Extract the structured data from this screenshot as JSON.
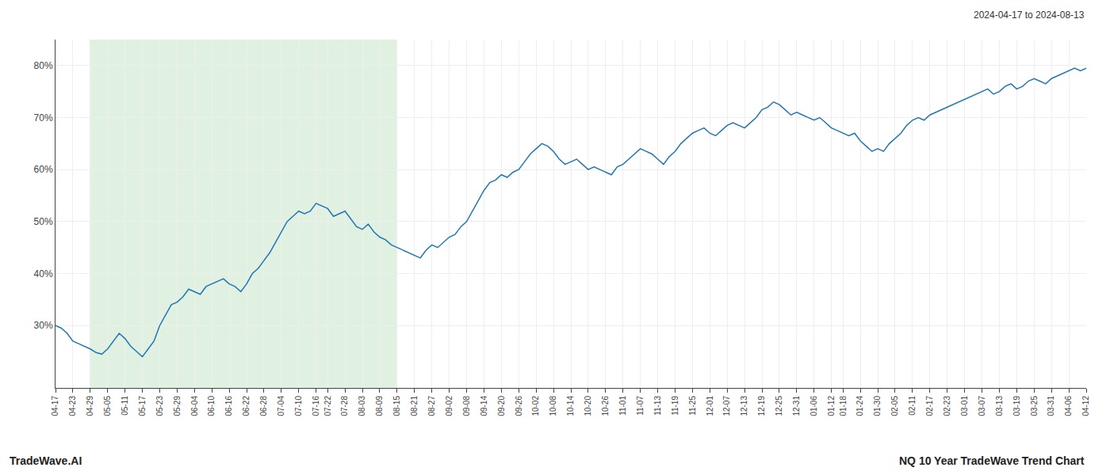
{
  "chart_data": {
    "type": "line",
    "color": "#1f77b4",
    "grid": true,
    "annotations": [
      {
        "text": "2024-04-17 to 2024-08-13",
        "position": "top right"
      },
      {
        "text": "TradeWave.AI",
        "position": "bottom left"
      },
      {
        "text": "NQ 10 Year TradeWave Trend Chart",
        "position": "bottom right"
      }
    ],
    "shaded_region": {
      "from": "04-29",
      "to": "08-15",
      "color": "#c8e6c9"
    },
    "ylim": [
      18,
      85
    ],
    "yticks": [
      {
        "value": 30,
        "label": "30%"
      },
      {
        "value": 40,
        "label": "40%"
      },
      {
        "value": 50,
        "label": "50%"
      },
      {
        "value": 60,
        "label": "60%"
      },
      {
        "value": 70,
        "label": "70%"
      },
      {
        "value": 80,
        "label": "80%"
      }
    ],
    "categories": [
      "04-17",
      null,
      null,
      "04-23",
      null,
      null,
      "04-29",
      null,
      null,
      "05-05",
      null,
      null,
      "05-11",
      null,
      null,
      "05-17",
      null,
      null,
      "05-23",
      null,
      null,
      "05-29",
      null,
      null,
      "06-04",
      null,
      null,
      "06-10",
      null,
      null,
      "06-16",
      null,
      null,
      "06-22",
      null,
      null,
      "06-28",
      null,
      null,
      "07-04",
      null,
      null,
      "07-10",
      null,
      null,
      "07-16",
      null,
      "07-22",
      null,
      null,
      "07-28",
      null,
      null,
      "08-03",
      null,
      null,
      "08-09",
      null,
      null,
      "08-15",
      null,
      null,
      "08-21",
      null,
      null,
      "08-27",
      null,
      null,
      "09-02",
      null,
      null,
      "09-08",
      null,
      null,
      "09-14",
      null,
      null,
      "09-20",
      null,
      null,
      "09-26",
      null,
      null,
      "10-02",
      null,
      null,
      "10-08",
      null,
      null,
      "10-14",
      null,
      null,
      "10-20",
      null,
      null,
      "10-26",
      null,
      null,
      "11-01",
      null,
      null,
      "11-07",
      null,
      null,
      "11-13",
      null,
      null,
      "11-19",
      null,
      null,
      "11-25",
      null,
      null,
      "12-01",
      null,
      null,
      "12-07",
      null,
      null,
      "12-13",
      null,
      null,
      "12-19",
      null,
      null,
      "12-25",
      null,
      null,
      "12-31",
      null,
      null,
      "01-06",
      null,
      null,
      "01-12",
      null,
      "01-18",
      null,
      null,
      "01-24",
      null,
      null,
      "01-30",
      null,
      null,
      "02-05",
      null,
      null,
      "02-11",
      null,
      null,
      "02-17",
      null,
      null,
      "02-23",
      null,
      null,
      "03-01",
      null,
      null,
      "03-07",
      null,
      null,
      "03-13",
      null,
      null,
      "03-19",
      null,
      null,
      "03-25",
      null,
      null,
      "03-31",
      null,
      null,
      "04-06",
      null,
      null,
      "04-12"
    ],
    "values": [
      30.0,
      29.5,
      28.5,
      27.0,
      26.5,
      26.0,
      25.5,
      24.8,
      24.5,
      25.5,
      27.0,
      28.5,
      27.5,
      26.0,
      25.0,
      24.0,
      25.5,
      27.0,
      30.0,
      32.0,
      34.0,
      34.5,
      35.5,
      37.0,
      36.5,
      36.0,
      37.5,
      38.0,
      38.5,
      39.0,
      38.0,
      37.5,
      36.5,
      38.0,
      40.0,
      41.0,
      42.5,
      44.0,
      46.0,
      48.0,
      50.0,
      51.0,
      52.0,
      51.5,
      52.0,
      53.5,
      53.0,
      52.5,
      51.0,
      51.5,
      52.0,
      50.5,
      49.0,
      48.5,
      49.5,
      48.0,
      47.0,
      46.5,
      45.5,
      45.0,
      44.5,
      44.0,
      43.5,
      43.0,
      44.5,
      45.5,
      45.0,
      46.0,
      47.0,
      47.5,
      49.0,
      50.0,
      52.0,
      54.0,
      56.0,
      57.5,
      58.0,
      59.0,
      58.5,
      59.5,
      60.0,
      61.5,
      63.0,
      64.0,
      65.0,
      64.5,
      63.5,
      62.0,
      61.0,
      61.5,
      62.0,
      61.0,
      60.0,
      60.5,
      60.0,
      59.5,
      59.0,
      60.5,
      61.0,
      62.0,
      63.0,
      64.0,
      63.5,
      63.0,
      62.0,
      61.0,
      62.5,
      63.5,
      65.0,
      66.0,
      67.0,
      67.5,
      68.0,
      67.0,
      66.5,
      67.5,
      68.5,
      69.0,
      68.5,
      68.0,
      69.0,
      70.0,
      71.5,
      72.0,
      73.0,
      72.5,
      71.5,
      70.5,
      71.0,
      70.5,
      70.0,
      69.5,
      70.0,
      69.0,
      68.0,
      67.5,
      67.0,
      66.5,
      67.0,
      65.5,
      64.5,
      63.5,
      64.0,
      63.5,
      65.0,
      66.0,
      67.0,
      68.5,
      69.5,
      70.0,
      69.5,
      70.5,
      71.0,
      71.5,
      72.0,
      72.5,
      73.0,
      73.5,
      74.0,
      74.5,
      75.0,
      75.5,
      74.5,
      75.0,
      76.0,
      76.5,
      75.5,
      76.0,
      77.0,
      77.5,
      77.0,
      76.5,
      77.5,
      78.0,
      78.5,
      79.0,
      79.5,
      79.0,
      79.5
    ]
  }
}
